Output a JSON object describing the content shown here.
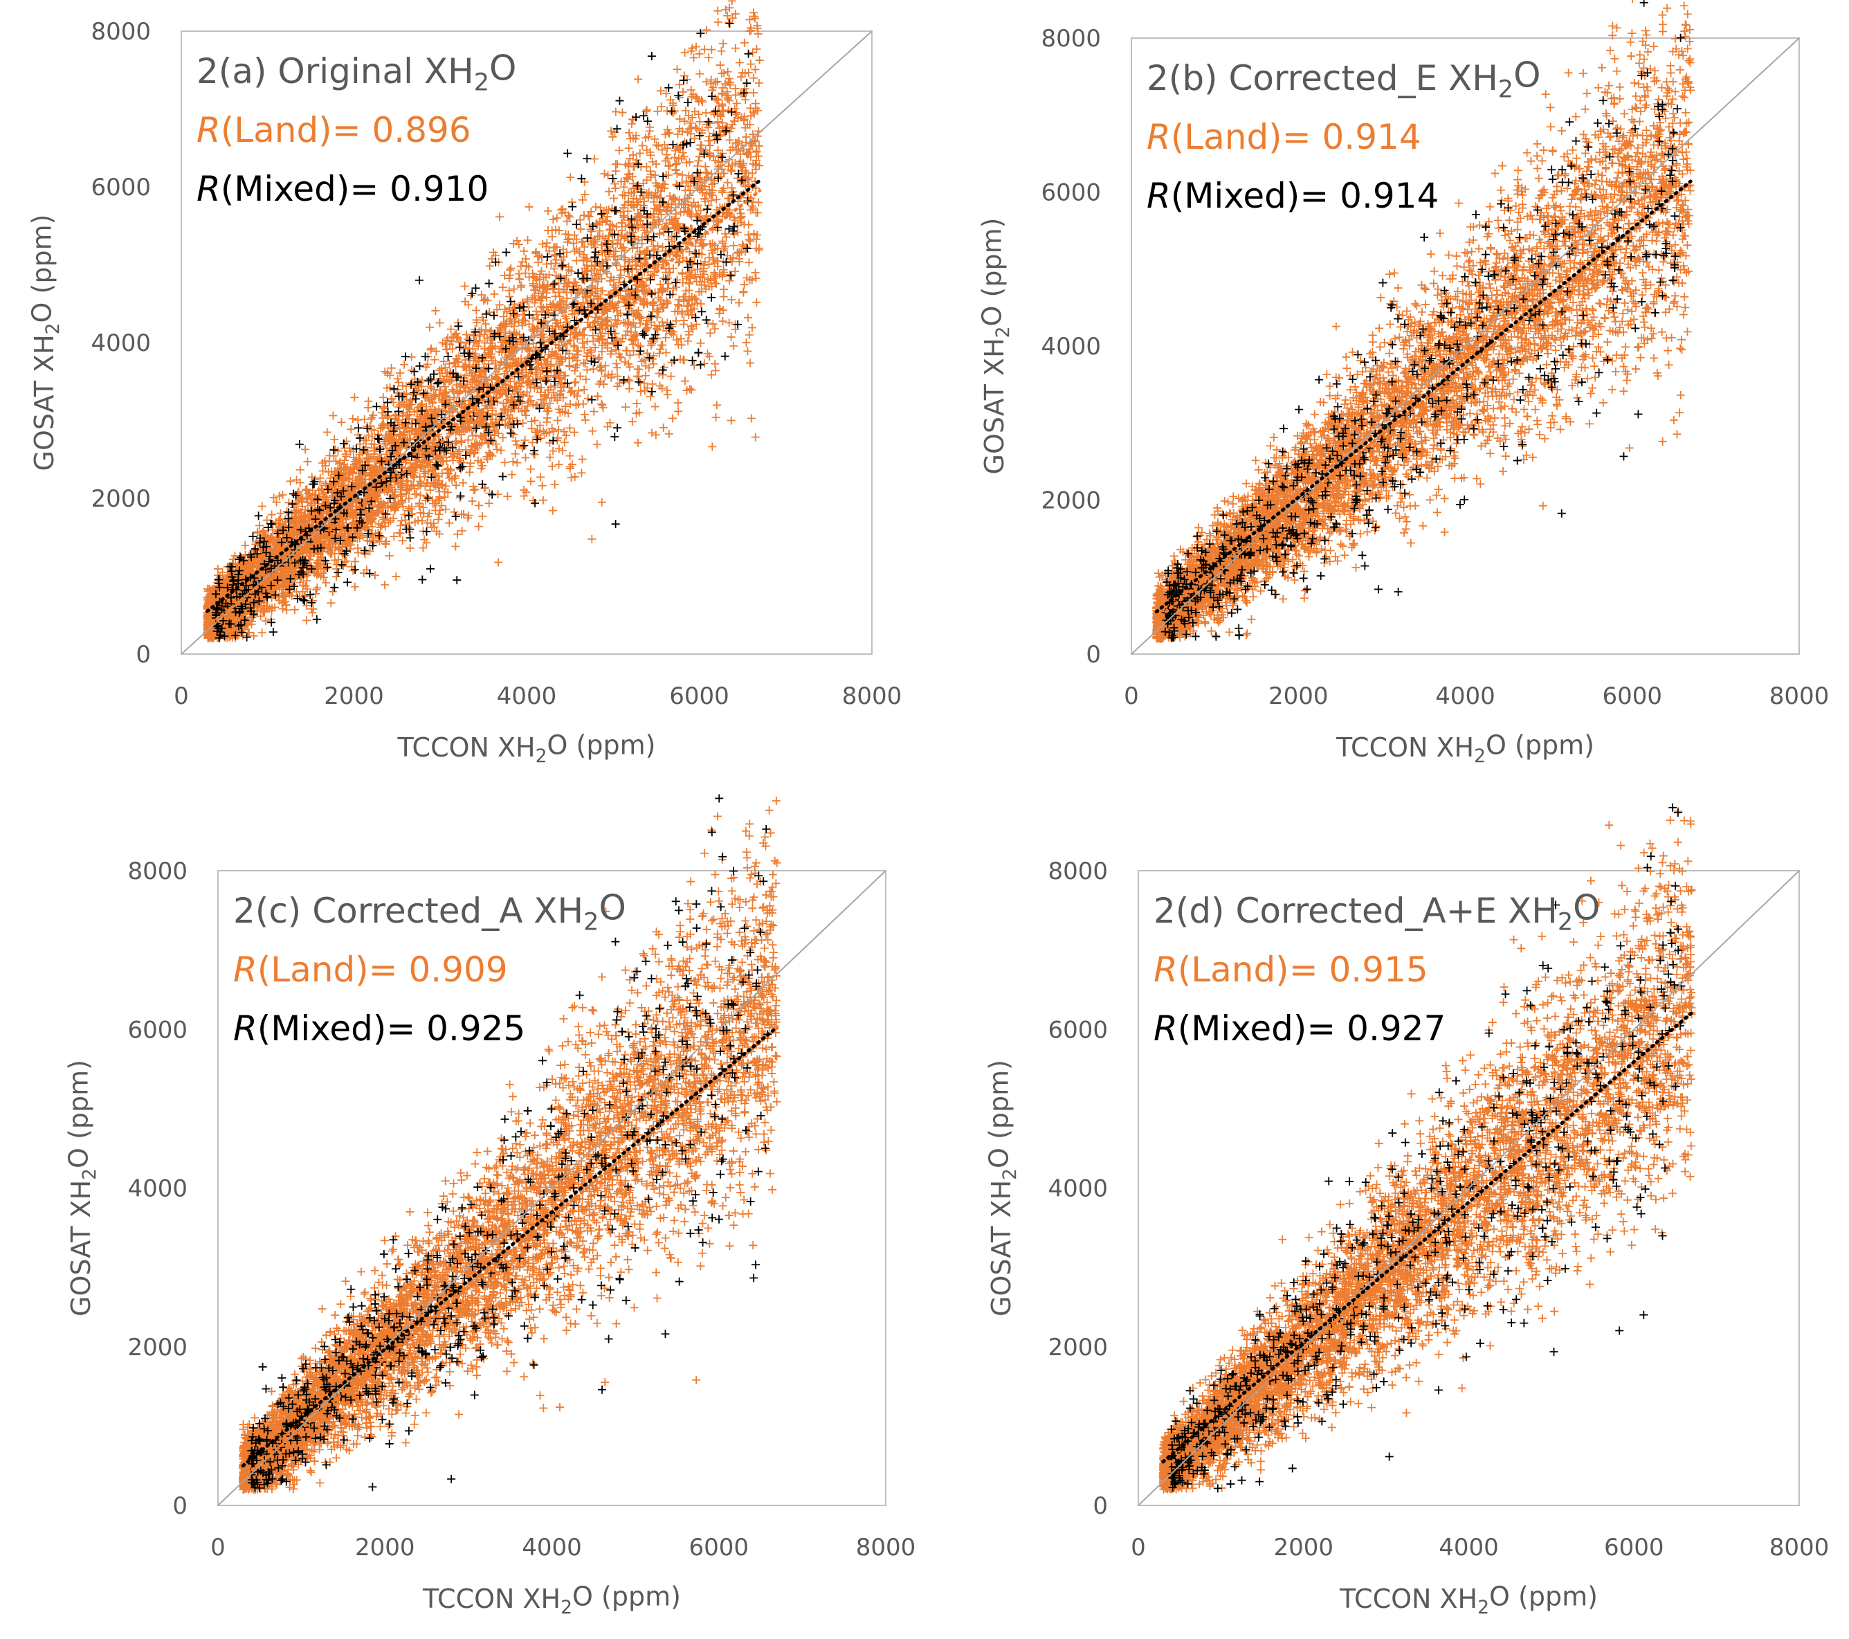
{
  "colors": {
    "land": "#ed7d31",
    "mixed": "#000000",
    "axis": "#bfbfbf",
    "text": "#595959",
    "oneToOne": "#a6a6a6"
  },
  "chart_data": [
    {
      "type": "scatter",
      "title": {
        "prefix": "2(a) Original XH",
        "sub": "2",
        "suffix": "O"
      },
      "r_land": {
        "label": "R",
        "rest": "(Land)= ",
        "value": "0.896"
      },
      "r_mixed": {
        "label": "R",
        "rest": "(Mixed)= ",
        "value": "0.910"
      },
      "xlabel": {
        "prefix": "TCCON XH",
        "sub": "2",
        "suffix": "O (ppm)"
      },
      "ylabel": {
        "prefix": "GOSAT XH",
        "sub": "2",
        "suffix": "O (ppm)"
      },
      "xlim": [
        0,
        8000
      ],
      "ylim": [
        0,
        8000
      ],
      "x_ticks": [
        "0",
        "2000",
        "4000",
        "6000",
        "8000"
      ],
      "y_ticks": [
        "0",
        "2000",
        "4000",
        "6000",
        "8000"
      ],
      "legend": "none",
      "grid": false,
      "one_to_one_line": true,
      "trend": {
        "land": {
          "x": [
            300,
            6700
          ],
          "y": [
            350,
            5950
          ]
        },
        "mixed": {
          "x": [
            300,
            6700
          ],
          "y": [
            550,
            6080
          ]
        }
      },
      "series": [
        {
          "marker": "plus",
          "x_range": [
            300,
            6700
          ],
          "approx_points": 6000
        },
        {
          "marker": "plus",
          "x_range": [
            400,
            6600
          ],
          "approx_points": 600
        }
      ]
    },
    {
      "type": "scatter",
      "title": {
        "prefix": "2(b) Corrected_E XH",
        "sub": "2",
        "suffix": "O"
      },
      "r_land": {
        "label": "R",
        "rest": "(Land)= ",
        "value": "0.914"
      },
      "r_mixed": {
        "label": "R",
        "rest": "(Mixed)= ",
        "value": "0.914"
      },
      "xlabel": {
        "prefix": "TCCON XH",
        "sub": "2",
        "suffix": "O (ppm)"
      },
      "ylabel": {
        "prefix": "GOSAT XH",
        "sub": "2",
        "suffix": "O (ppm)"
      },
      "xlim": [
        0,
        8000
      ],
      "ylim": [
        0,
        8000
      ],
      "x_ticks": [
        "0",
        "2000",
        "4000",
        "6000",
        "8000"
      ],
      "y_ticks": [
        "0",
        "2000",
        "4000",
        "6000",
        "8000"
      ],
      "legend": "none",
      "grid": false,
      "one_to_one_line": true,
      "trend": {
        "land": {
          "x": [
            300,
            6700
          ],
          "y": [
            450,
            6120
          ]
        },
        "mixed": {
          "x": [
            300,
            6700
          ],
          "y": [
            550,
            6140
          ]
        }
      },
      "series": [
        {
          "marker": "plus",
          "x_range": [
            300,
            6700
          ],
          "approx_points": 6000
        },
        {
          "marker": "plus",
          "x_range": [
            400,
            6600
          ],
          "approx_points": 600
        }
      ]
    },
    {
      "type": "scatter",
      "title": {
        "prefix": "2(c) Corrected_A XH",
        "sub": "2",
        "suffix": "O"
      },
      "r_land": {
        "label": "R",
        "rest": "(Land)= ",
        "value": "0.909"
      },
      "r_mixed": {
        "label": "R",
        "rest": "(Mixed)= ",
        "value": "0.925"
      },
      "xlabel": {
        "prefix": "TCCON XH",
        "sub": "2",
        "suffix": "O (ppm)"
      },
      "ylabel": {
        "prefix": "GOSAT XH",
        "sub": "2",
        "suffix": "O (ppm)"
      },
      "xlim": [
        0,
        8000
      ],
      "ylim": [
        0,
        8000
      ],
      "x_ticks": [
        "0",
        "2000",
        "4000",
        "6000",
        "8000"
      ],
      "y_ticks": [
        "0",
        "2000",
        "4000",
        "6000",
        "8000"
      ],
      "legend": "none",
      "grid": false,
      "one_to_one_line": true,
      "trend": {
        "land": {
          "x": [
            300,
            6700
          ],
          "y": [
            350,
            6020
          ]
        },
        "mixed": {
          "x": [
            300,
            6700
          ],
          "y": [
            500,
            6030
          ]
        }
      },
      "series": [
        {
          "marker": "plus",
          "x_range": [
            300,
            6700
          ],
          "approx_points": 6000
        },
        {
          "marker": "plus",
          "x_range": [
            400,
            6600
          ],
          "approx_points": 600
        }
      ]
    },
    {
      "type": "scatter",
      "title": {
        "prefix": "2(d) Corrected_A+E  XH",
        "sub": "2",
        "suffix": "O"
      },
      "r_land": {
        "label": "R",
        "rest": "(Land)= ",
        "value": "0.915"
      },
      "r_mixed": {
        "label": "R",
        "rest": "(Mixed)= ",
        "value": "0.927"
      },
      "xlabel": {
        "prefix": "TCCON XH",
        "sub": "2",
        "suffix": "O (ppm)"
      },
      "ylabel": {
        "prefix": "GOSAT XH",
        "sub": "2",
        "suffix": "O (ppm)"
      },
      "xlim": [
        0,
        8000
      ],
      "ylim": [
        0,
        8000
      ],
      "x_ticks": [
        "0",
        "2000",
        "4000",
        "6000",
        "8000"
      ],
      "y_ticks": [
        "0",
        "2000",
        "4000",
        "6000",
        "8000"
      ],
      "legend": "none",
      "grid": false,
      "one_to_one_line": true,
      "trend": {
        "land": {
          "x": [
            300,
            6700
          ],
          "y": [
            450,
            6200
          ]
        },
        "mixed": {
          "x": [
            300,
            6700
          ],
          "y": [
            550,
            6210
          ]
        }
      },
      "series": [
        {
          "marker": "plus",
          "x_range": [
            300,
            6700
          ],
          "approx_points": 6000
        },
        {
          "marker": "plus",
          "x_range": [
            400,
            6600
          ],
          "approx_points": 600
        }
      ]
    }
  ]
}
